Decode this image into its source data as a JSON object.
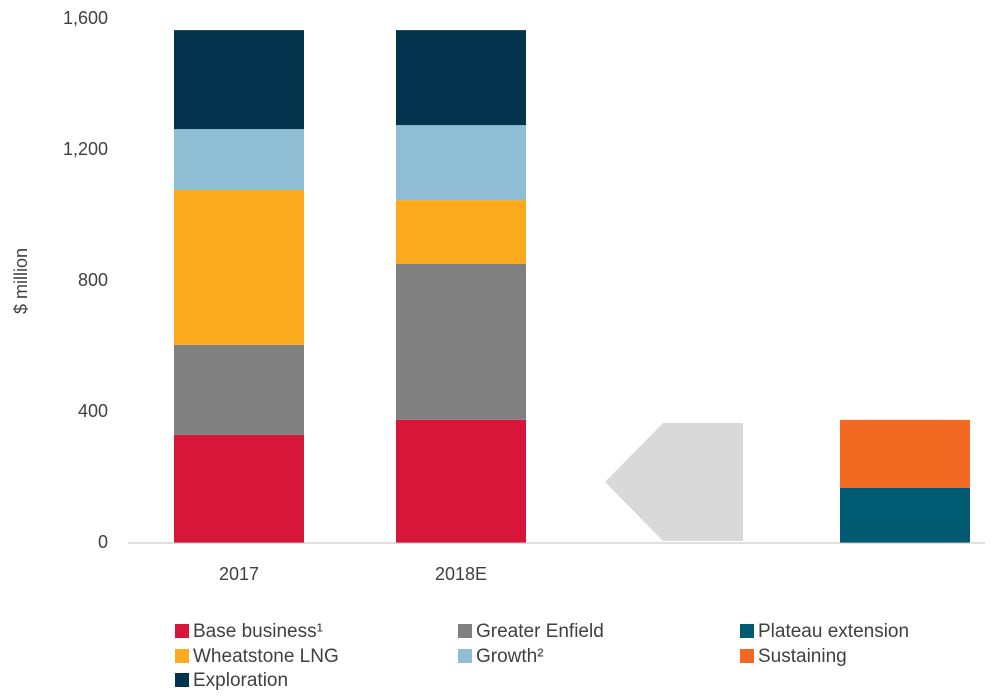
{
  "chart_data": {
    "type": "bar",
    "stacked": true,
    "y_label": "$ million",
    "categories": [
      "2017",
      "2018E",
      null,
      null
    ],
    "series": [
      {
        "name": "Base business¹",
        "color": "#d7163a",
        "values": [
          330,
          376,
          null,
          null
        ]
      },
      {
        "name": "Greater Enfield",
        "color": "#808080",
        "values": [
          275,
          476,
          null,
          null
        ]
      },
      {
        "name": "Plateau extension",
        "color": "#005a72",
        "values": [
          null,
          null,
          null,
          168
        ]
      },
      {
        "name": "Wheatstone LNG",
        "color": "#fbaa1e",
        "values": [
          473,
          195,
          null,
          null
        ]
      },
      {
        "name": "Growth²",
        "color": "#8fbdd3",
        "values": [
          186,
          229,
          null,
          null
        ]
      },
      {
        "name": "Sustaining",
        "color": "#f26a21",
        "values": [
          null,
          null,
          null,
          208
        ]
      },
      {
        "name": "Exploration",
        "color": "#04334d",
        "values": [
          302,
          290,
          null,
          null
        ]
      }
    ],
    "ylim": [
      0,
      1600
    ],
    "yticks": [
      0,
      400,
      800,
      {
        "value": 1200,
        "label": "1,200"
      },
      {
        "value": 1600,
        "label": "1,600"
      }
    ],
    "grid": false,
    "legend": "bottom"
  }
}
